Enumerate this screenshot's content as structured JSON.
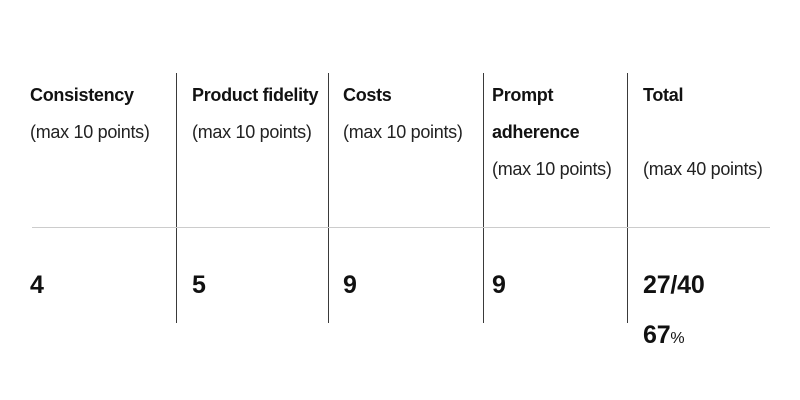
{
  "table": {
    "columns": [
      {
        "id": "consistency",
        "title": "Consistency",
        "subtitle": "(max 10 points)",
        "value": "4"
      },
      {
        "id": "product-fidelity",
        "title": "Product fidelity",
        "subtitle": "(max 10 points)",
        "value": "5"
      },
      {
        "id": "costs",
        "title": "Costs",
        "subtitle": "(max 10 points)",
        "value": "9"
      },
      {
        "id": "prompt-adherence",
        "title": "Prompt adherence",
        "title_line1": "Prompt",
        "title_line2": "adherence",
        "subtitle": "(max 10 points)",
        "value": "9"
      },
      {
        "id": "total",
        "title": "Total",
        "subtitle": "(max 40 points)",
        "value_score": "27/40",
        "value_percent": "67",
        "percent_sign": "%"
      }
    ]
  },
  "colors": {
    "background": "#ffffff",
    "title_text": "#121212",
    "subtitle_text": "#222222",
    "value_text": "#111111",
    "column_divider": "#3a3a3a",
    "header_separator": "#cccccc"
  }
}
